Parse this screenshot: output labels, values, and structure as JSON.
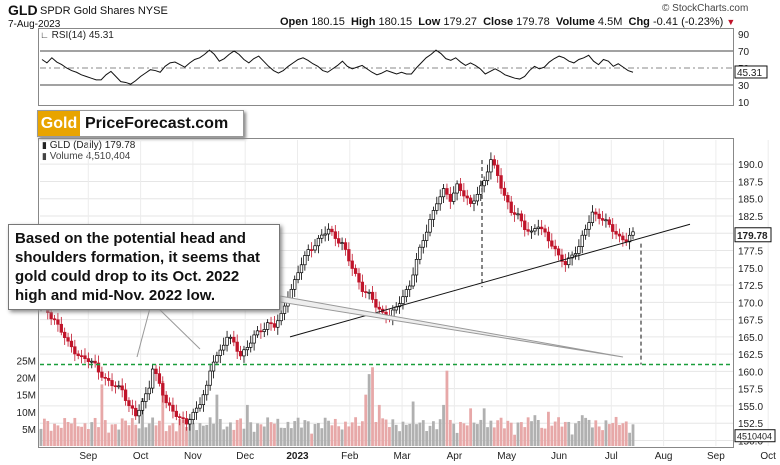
{
  "header": {
    "symbol": "GLD",
    "name": "SPDR Gold Shares",
    "exchange": "NYSE",
    "date": "7-Aug-2023",
    "open_label": "Open",
    "open": "180.15",
    "high_label": "High",
    "high": "180.15",
    "low_label": "Low",
    "low": "179.27",
    "close_label": "Close",
    "close": "179.78",
    "volume_label": "Volume",
    "volume": "4.5M",
    "chg_label": "Chg",
    "chg": "-0.41 (-0.23%)",
    "copyright": "© StockCharts.com"
  },
  "colors": {
    "up": "#000000",
    "down": "#c0142a",
    "support": "#1a9e3b",
    "volume": "#a9a9a9"
  },
  "rsi": {
    "legend": "RSI(14) 45.31",
    "current": "45.31",
    "levels": [
      "90",
      "70",
      "50",
      "30",
      "10"
    ],
    "series": [
      60,
      56,
      62,
      57,
      54,
      50,
      47,
      45,
      42,
      40,
      38,
      36,
      36,
      42,
      46,
      40,
      34,
      33,
      31,
      35,
      40,
      44,
      48,
      47,
      45,
      52,
      56,
      57,
      54,
      51,
      56,
      60,
      62,
      66,
      71,
      66,
      58,
      61,
      66,
      70,
      66,
      60,
      56,
      61,
      64,
      58,
      52,
      47,
      44,
      47,
      52,
      56,
      60,
      62,
      59,
      55,
      52,
      47,
      45,
      49,
      53,
      58,
      52,
      49,
      51,
      53,
      49,
      45,
      42,
      44,
      47,
      45,
      43,
      45,
      43,
      43,
      50,
      56,
      62,
      66,
      71,
      67,
      61,
      59,
      62,
      57,
      53,
      56,
      53,
      49,
      43,
      46,
      49,
      46,
      42,
      40,
      38,
      37,
      40,
      47,
      52,
      49,
      51,
      57,
      61,
      64,
      62,
      58,
      56,
      60,
      62,
      65,
      58,
      54,
      60,
      58,
      52,
      55,
      51,
      47,
      45
    ]
  },
  "logo": {
    "part1": "Gold",
    "part2": "PriceForecast.com"
  },
  "price_legend": {
    "line1": "GLD (Daily) 179.78",
    "line2": "Volume 4,510,404"
  },
  "price_labels": {
    "current": "179.78",
    "volume_current": "4510404"
  },
  "annotation": "Based on the potential head and shoulders formation, it seems that gold could drop to its Oct. 2022 high and mid-Nov. 2022 low.",
  "chart_data": {
    "type": "candlestick",
    "title": "GLD (Daily) 179.78",
    "y_ticks": [
      150.0,
      152.5,
      155.0,
      157.5,
      160.0,
      162.5,
      165.0,
      167.5,
      170.0,
      172.5,
      175.0,
      177.5,
      180.0,
      182.5,
      185.0,
      187.5,
      190.0
    ],
    "y_tick_labels": [
      "150.0",
      "152.5",
      "155.0",
      "157.5",
      "160.0",
      "162.5",
      "165.0",
      "167.5",
      "170.0",
      "172.5",
      "175.0",
      "177.5",
      "",
      "182.5",
      "185.0",
      "187.5",
      "190.0"
    ],
    "ylim": [
      149.2,
      193.5
    ],
    "x_labels": [
      "Sep",
      "Oct",
      "Nov",
      "Dec",
      "2023",
      "Feb",
      "Mar",
      "Apr",
      "May",
      "Jun",
      "Jul",
      "Aug",
      "Sep",
      "Oct"
    ],
    "x_label_month_index": [
      1,
      2,
      3,
      4,
      5,
      6,
      7,
      8,
      9,
      10,
      11,
      12,
      13,
      14
    ],
    "x_start": "2022-07-15",
    "x_end": "2023-10-15",
    "volume_ticks": [
      "5M",
      "10M",
      "15M",
      "20M",
      "25M"
    ],
    "volume_tick_values": [
      5,
      10,
      15,
      20,
      25
    ],
    "volume_ylim": [
      0,
      26
    ],
    "price_path": [
      [
        0,
        169.8
      ],
      [
        4,
        167.5
      ],
      [
        8,
        164.0
      ],
      [
        12,
        162.0
      ],
      [
        16,
        161.0
      ],
      [
        19,
        158.8
      ],
      [
        21,
        158.0
      ],
      [
        24,
        157.5
      ],
      [
        26,
        155.0
      ],
      [
        28,
        153.5
      ],
      [
        30,
        155.5
      ],
      [
        32,
        158.0
      ],
      [
        33,
        160.5
      ],
      [
        35,
        158.0
      ],
      [
        37,
        155.5
      ],
      [
        39,
        154.5
      ],
      [
        41,
        153.0
      ],
      [
        43,
        152.5
      ],
      [
        45,
        154.0
      ],
      [
        47,
        155.5
      ],
      [
        49,
        157.5
      ],
      [
        50,
        160.0
      ],
      [
        51,
        161.7
      ],
      [
        53,
        163.0
      ],
      [
        55,
        165.0
      ],
      [
        57,
        164.0
      ],
      [
        59,
        162.5
      ],
      [
        61,
        163.5
      ],
      [
        63,
        165.0
      ],
      [
        65,
        166.0
      ],
      [
        67,
        167.0
      ],
      [
        69,
        166.5
      ],
      [
        71,
        168.0
      ],
      [
        73,
        171.0
      ],
      [
        75,
        173.0
      ],
      [
        77,
        175.5
      ],
      [
        79,
        177.5
      ],
      [
        81,
        178.5
      ],
      [
        83,
        179.5
      ],
      [
        85,
        180.5
      ],
      [
        87,
        179.5
      ],
      [
        89,
        178.5
      ],
      [
        91,
        176.0
      ],
      [
        93,
        174.0
      ],
      [
        95,
        172.0
      ],
      [
        97,
        171.0
      ],
      [
        99,
        169.5
      ],
      [
        101,
        168.5
      ],
      [
        103,
        168.0
      ],
      [
        105,
        169.0
      ],
      [
        107,
        171.0
      ],
      [
        109,
        172.5
      ],
      [
        111,
        176.0
      ],
      [
        113,
        179.0
      ],
      [
        115,
        182.0
      ],
      [
        117,
        184.5
      ],
      [
        119,
        186.0
      ],
      [
        121,
        185.0
      ],
      [
        123,
        187.0
      ],
      [
        125,
        185.5
      ],
      [
        127,
        184.0
      ],
      [
        129,
        186.0
      ],
      [
        131,
        187.5
      ],
      [
        133,
        190.5
      ],
      [
        135,
        188.5
      ],
      [
        137,
        185.5
      ],
      [
        139,
        183.0
      ],
      [
        141,
        182.5
      ],
      [
        143,
        181.0
      ],
      [
        145,
        180.0
      ],
      [
        147,
        181.0
      ],
      [
        149,
        180.0
      ],
      [
        151,
        178.5
      ],
      [
        153,
        176.5
      ],
      [
        155,
        175.5
      ],
      [
        157,
        177.0
      ],
      [
        159,
        178.0
      ],
      [
        161,
        180.5
      ],
      [
        163,
        183.0
      ],
      [
        165,
        182.5
      ],
      [
        167,
        181.5
      ],
      [
        169,
        180.5
      ],
      [
        171,
        179.5
      ],
      [
        173,
        179.0
      ],
      [
        175,
        179.78
      ]
    ],
    "candle_count": 176,
    "volume_spikes": [
      [
        18,
        18
      ],
      [
        30,
        14
      ],
      [
        36,
        19
      ],
      [
        52,
        15
      ],
      [
        61,
        12
      ],
      [
        96,
        15
      ],
      [
        97,
        21
      ],
      [
        98,
        23
      ],
      [
        100,
        12
      ],
      [
        110,
        13
      ],
      [
        119,
        12
      ],
      [
        120,
        22
      ],
      [
        127,
        11
      ],
      [
        131,
        11
      ],
      [
        146,
        9
      ],
      [
        150,
        10
      ],
      [
        160,
        9
      ]
    ],
    "neckline": {
      "from": [
        "2022-12-20",
        165.0
      ],
      "to": [
        "2023-09-01",
        181.3
      ]
    },
    "support_level": 161.0,
    "support_label": "Oct. 2022 high / mid-Nov. 2022 low",
    "rsi_levels": [
      90,
      70,
      50,
      30,
      10
    ],
    "annotation_lines": true
  }
}
